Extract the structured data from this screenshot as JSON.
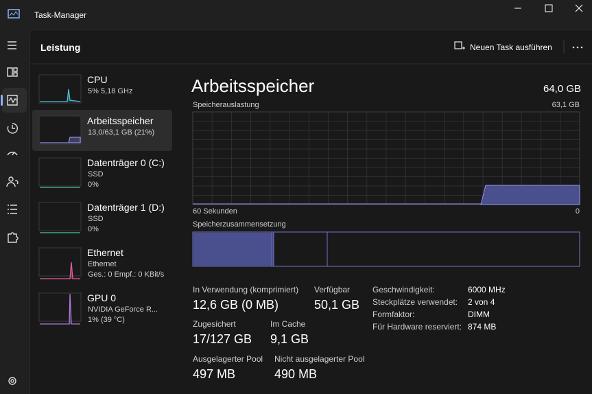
{
  "window": {
    "title": "Task-Manager"
  },
  "header": {
    "title": "Leistung",
    "run_task": "Neuen Task ausführen"
  },
  "devices": [
    {
      "name": "CPU",
      "lines": [
        "5% 5,18 GHz"
      ]
    },
    {
      "name": "Arbeitsspeicher",
      "lines": [
        "13,0/63,1 GB (21%)"
      ]
    },
    {
      "name": "Datenträger 0 (C:)",
      "lines": [
        "SSD",
        "0%"
      ]
    },
    {
      "name": "Datenträger 1 (D:)",
      "lines": [
        "SSD",
        "0%"
      ]
    },
    {
      "name": "Ethernet",
      "lines": [
        "Ethernet",
        "Ges.: 0 Empf.: 0 KBit/s"
      ]
    },
    {
      "name": "GPU 0",
      "lines": [
        "NVIDIA GeForce R...",
        "1% (39 °C)"
      ]
    }
  ],
  "detail": {
    "title": "Arbeitsspeicher",
    "total": "64,0 GB",
    "usage_label": "Speicherauslastung",
    "usage_max": "63,1 GB",
    "time_left": "60 Sekunden",
    "time_right": "0",
    "composition_label": "Speicherzusammensetzung",
    "stats": [
      {
        "label": "In Verwendung (komprimiert)",
        "value": "12,6 GB (0 MB)"
      },
      {
        "label": "Verfügbar",
        "value": "50,1 GB"
      },
      {
        "label": "Zugesichert",
        "value": "17/127 GB"
      },
      {
        "label": "Im Cache",
        "value": "9,1 GB"
      },
      {
        "label": "Ausgelagerter Pool",
        "value": "497 MB"
      },
      {
        "label": "Nicht ausgelagerter Pool",
        "value": "490 MB"
      }
    ],
    "specs": [
      {
        "label": "Geschwindigkeit:",
        "value": "6000 MHz"
      },
      {
        "label": "Steckplätze verwendet:",
        "value": "2 von 4"
      },
      {
        "label": "Formfaktor:",
        "value": "DIMM"
      },
      {
        "label": "Für Hardware reserviert:",
        "value": "874 MB"
      }
    ]
  }
}
